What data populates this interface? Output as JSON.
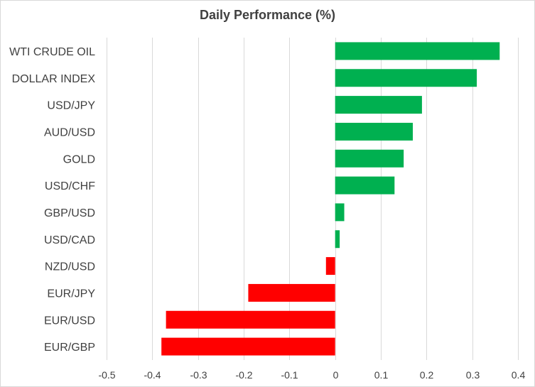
{
  "chart_data": {
    "type": "bar",
    "orientation": "horizontal",
    "title": "Daily Performance  (%)",
    "xlabel": "",
    "ylabel": "",
    "categories": [
      "WTI CRUDE OIL",
      "DOLLAR INDEX",
      "USD/JPY",
      "AUD/USD",
      "GOLD",
      "USD/CHF",
      "GBP/USD",
      "USD/CAD",
      "NZD/USD",
      "EUR/JPY",
      "EUR/USD",
      "EUR/GBP"
    ],
    "values": [
      0.36,
      0.31,
      0.19,
      0.17,
      0.15,
      0.13,
      0.02,
      0.01,
      -0.02,
      -0.19,
      -0.37,
      -0.38
    ],
    "xlim": [
      -0.5,
      0.4
    ],
    "ticks": [
      -0.5,
      -0.4,
      -0.3,
      -0.2,
      -0.1,
      0,
      0.1,
      0.2,
      0.3,
      0.4
    ],
    "tick_labels": [
      "-0.5",
      "-0.4",
      "-0.3",
      "-0.2",
      "-0.1",
      "0",
      "0.1",
      "0.2",
      "0.3",
      "0.4"
    ],
    "grid": "vertical",
    "legend": "none",
    "colors": {
      "positive": "#00b050",
      "negative": "#ff0000",
      "grid": "#d9d9d9",
      "text": "#404040"
    }
  }
}
